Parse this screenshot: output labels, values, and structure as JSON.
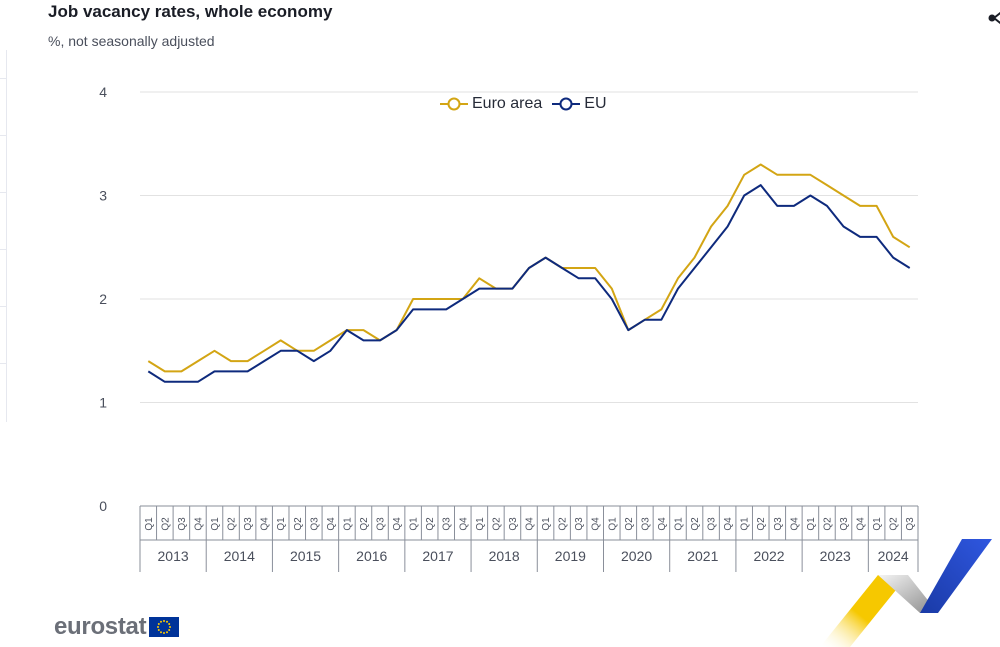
{
  "header": {
    "title": "Job vacancy rates, whole economy",
    "subtitle": "%, not  seasonally adjusted"
  },
  "logo": {
    "text": "eurostat"
  },
  "icons": {
    "share": "share-icon",
    "flag": "eu-flag-icon"
  },
  "colors": {
    "euro_area": "#d3a514",
    "eu": "#0e2a7d",
    "grid": "#e2e2e2",
    "axis": "#4a4f5c"
  },
  "chart_data": {
    "type": "line",
    "title": "Job vacancy rates, whole economy",
    "subtitle": "%, not  seasonally adjusted",
    "xlabel": "",
    "ylabel": "",
    "ylim": [
      0,
      4
    ],
    "y_ticks": [
      0,
      1,
      2,
      3,
      4
    ],
    "grid": true,
    "legend_position": "top-center",
    "quarter_labels": [
      "Q1",
      "Q2",
      "Q3",
      "Q4"
    ],
    "years": [
      {
        "label": "2013",
        "quarters": [
          "Q1",
          "Q2",
          "Q3",
          "Q4"
        ]
      },
      {
        "label": "2014",
        "quarters": [
          "Q1",
          "Q2",
          "Q3",
          "Q4"
        ]
      },
      {
        "label": "2015",
        "quarters": [
          "Q1",
          "Q2",
          "Q3",
          "Q4"
        ]
      },
      {
        "label": "2016",
        "quarters": [
          "Q1",
          "Q2",
          "Q3",
          "Q4"
        ]
      },
      {
        "label": "2017",
        "quarters": [
          "Q1",
          "Q2",
          "Q3",
          "Q4"
        ]
      },
      {
        "label": "2018",
        "quarters": [
          "Q1",
          "Q2",
          "Q3",
          "Q4"
        ]
      },
      {
        "label": "2019",
        "quarters": [
          "Q1",
          "Q2",
          "Q3",
          "Q4"
        ]
      },
      {
        "label": "2020",
        "quarters": [
          "Q1",
          "Q2",
          "Q3",
          "Q4"
        ]
      },
      {
        "label": "2021",
        "quarters": [
          "Q1",
          "Q2",
          "Q3",
          "Q4"
        ]
      },
      {
        "label": "2022",
        "quarters": [
          "Q1",
          "Q2",
          "Q3",
          "Q4"
        ]
      },
      {
        "label": "2023",
        "quarters": [
          "Q1",
          "Q2",
          "Q3",
          "Q4"
        ]
      },
      {
        "label": "2024",
        "quarters": [
          "Q1",
          "Q2",
          "Q3"
        ]
      }
    ],
    "series": [
      {
        "name": "Euro area",
        "color": "#d3a514",
        "values": [
          1.4,
          1.3,
          1.3,
          1.4,
          1.5,
          1.4,
          1.4,
          1.5,
          1.6,
          1.5,
          1.5,
          1.6,
          1.7,
          1.7,
          1.6,
          1.7,
          2.0,
          2.0,
          2.0,
          2.0,
          2.2,
          2.1,
          2.1,
          2.3,
          2.4,
          2.3,
          2.3,
          2.3,
          2.1,
          1.7,
          1.8,
          1.9,
          2.2,
          2.4,
          2.7,
          2.9,
          3.2,
          3.3,
          3.2,
          3.2,
          3.2,
          3.1,
          3.0,
          2.9,
          2.9,
          2.6,
          2.5
        ]
      },
      {
        "name": "EU",
        "color": "#0e2a7d",
        "values": [
          1.3,
          1.2,
          1.2,
          1.2,
          1.3,
          1.3,
          1.3,
          1.4,
          1.5,
          1.5,
          1.4,
          1.5,
          1.7,
          1.6,
          1.6,
          1.7,
          1.9,
          1.9,
          1.9,
          2.0,
          2.1,
          2.1,
          2.1,
          2.3,
          2.4,
          2.3,
          2.2,
          2.2,
          2.0,
          1.7,
          1.8,
          1.8,
          2.1,
          2.3,
          2.5,
          2.7,
          3.0,
          3.1,
          2.9,
          2.9,
          3.0,
          2.9,
          2.7,
          2.6,
          2.6,
          2.4,
          2.3
        ]
      }
    ]
  }
}
